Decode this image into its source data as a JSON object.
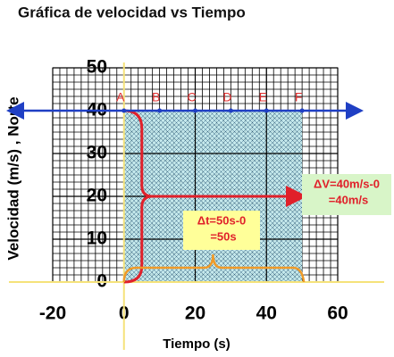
{
  "chart_data": {
    "type": "line",
    "title": "Gráfica de velocidad vs Tiempo",
    "x_label": "Tiempo (s)",
    "y_label": "Velocidad (m/s) , Norte",
    "x": [
      0,
      10,
      20,
      30,
      40,
      50
    ],
    "point_labels": [
      "A",
      "B",
      "C",
      "D",
      "E",
      "F"
    ],
    "values": [
      40,
      40,
      40,
      40,
      40,
      40
    ],
    "color": "#1f3fc4",
    "xlim": [
      -20,
      60
    ],
    "ylim": [
      0,
      50
    ],
    "xticks": [
      -20,
      0,
      20,
      40,
      60
    ],
    "yticks": [
      0,
      10,
      20,
      30,
      40,
      50
    ],
    "grid": true,
    "annotations": [
      {
        "lines": [
          "ΔV=40m/s-0",
          "=40m/s"
        ]
      },
      {
        "lines": [
          "Δt=50s-0",
          "=50s"
        ]
      }
    ]
  }
}
